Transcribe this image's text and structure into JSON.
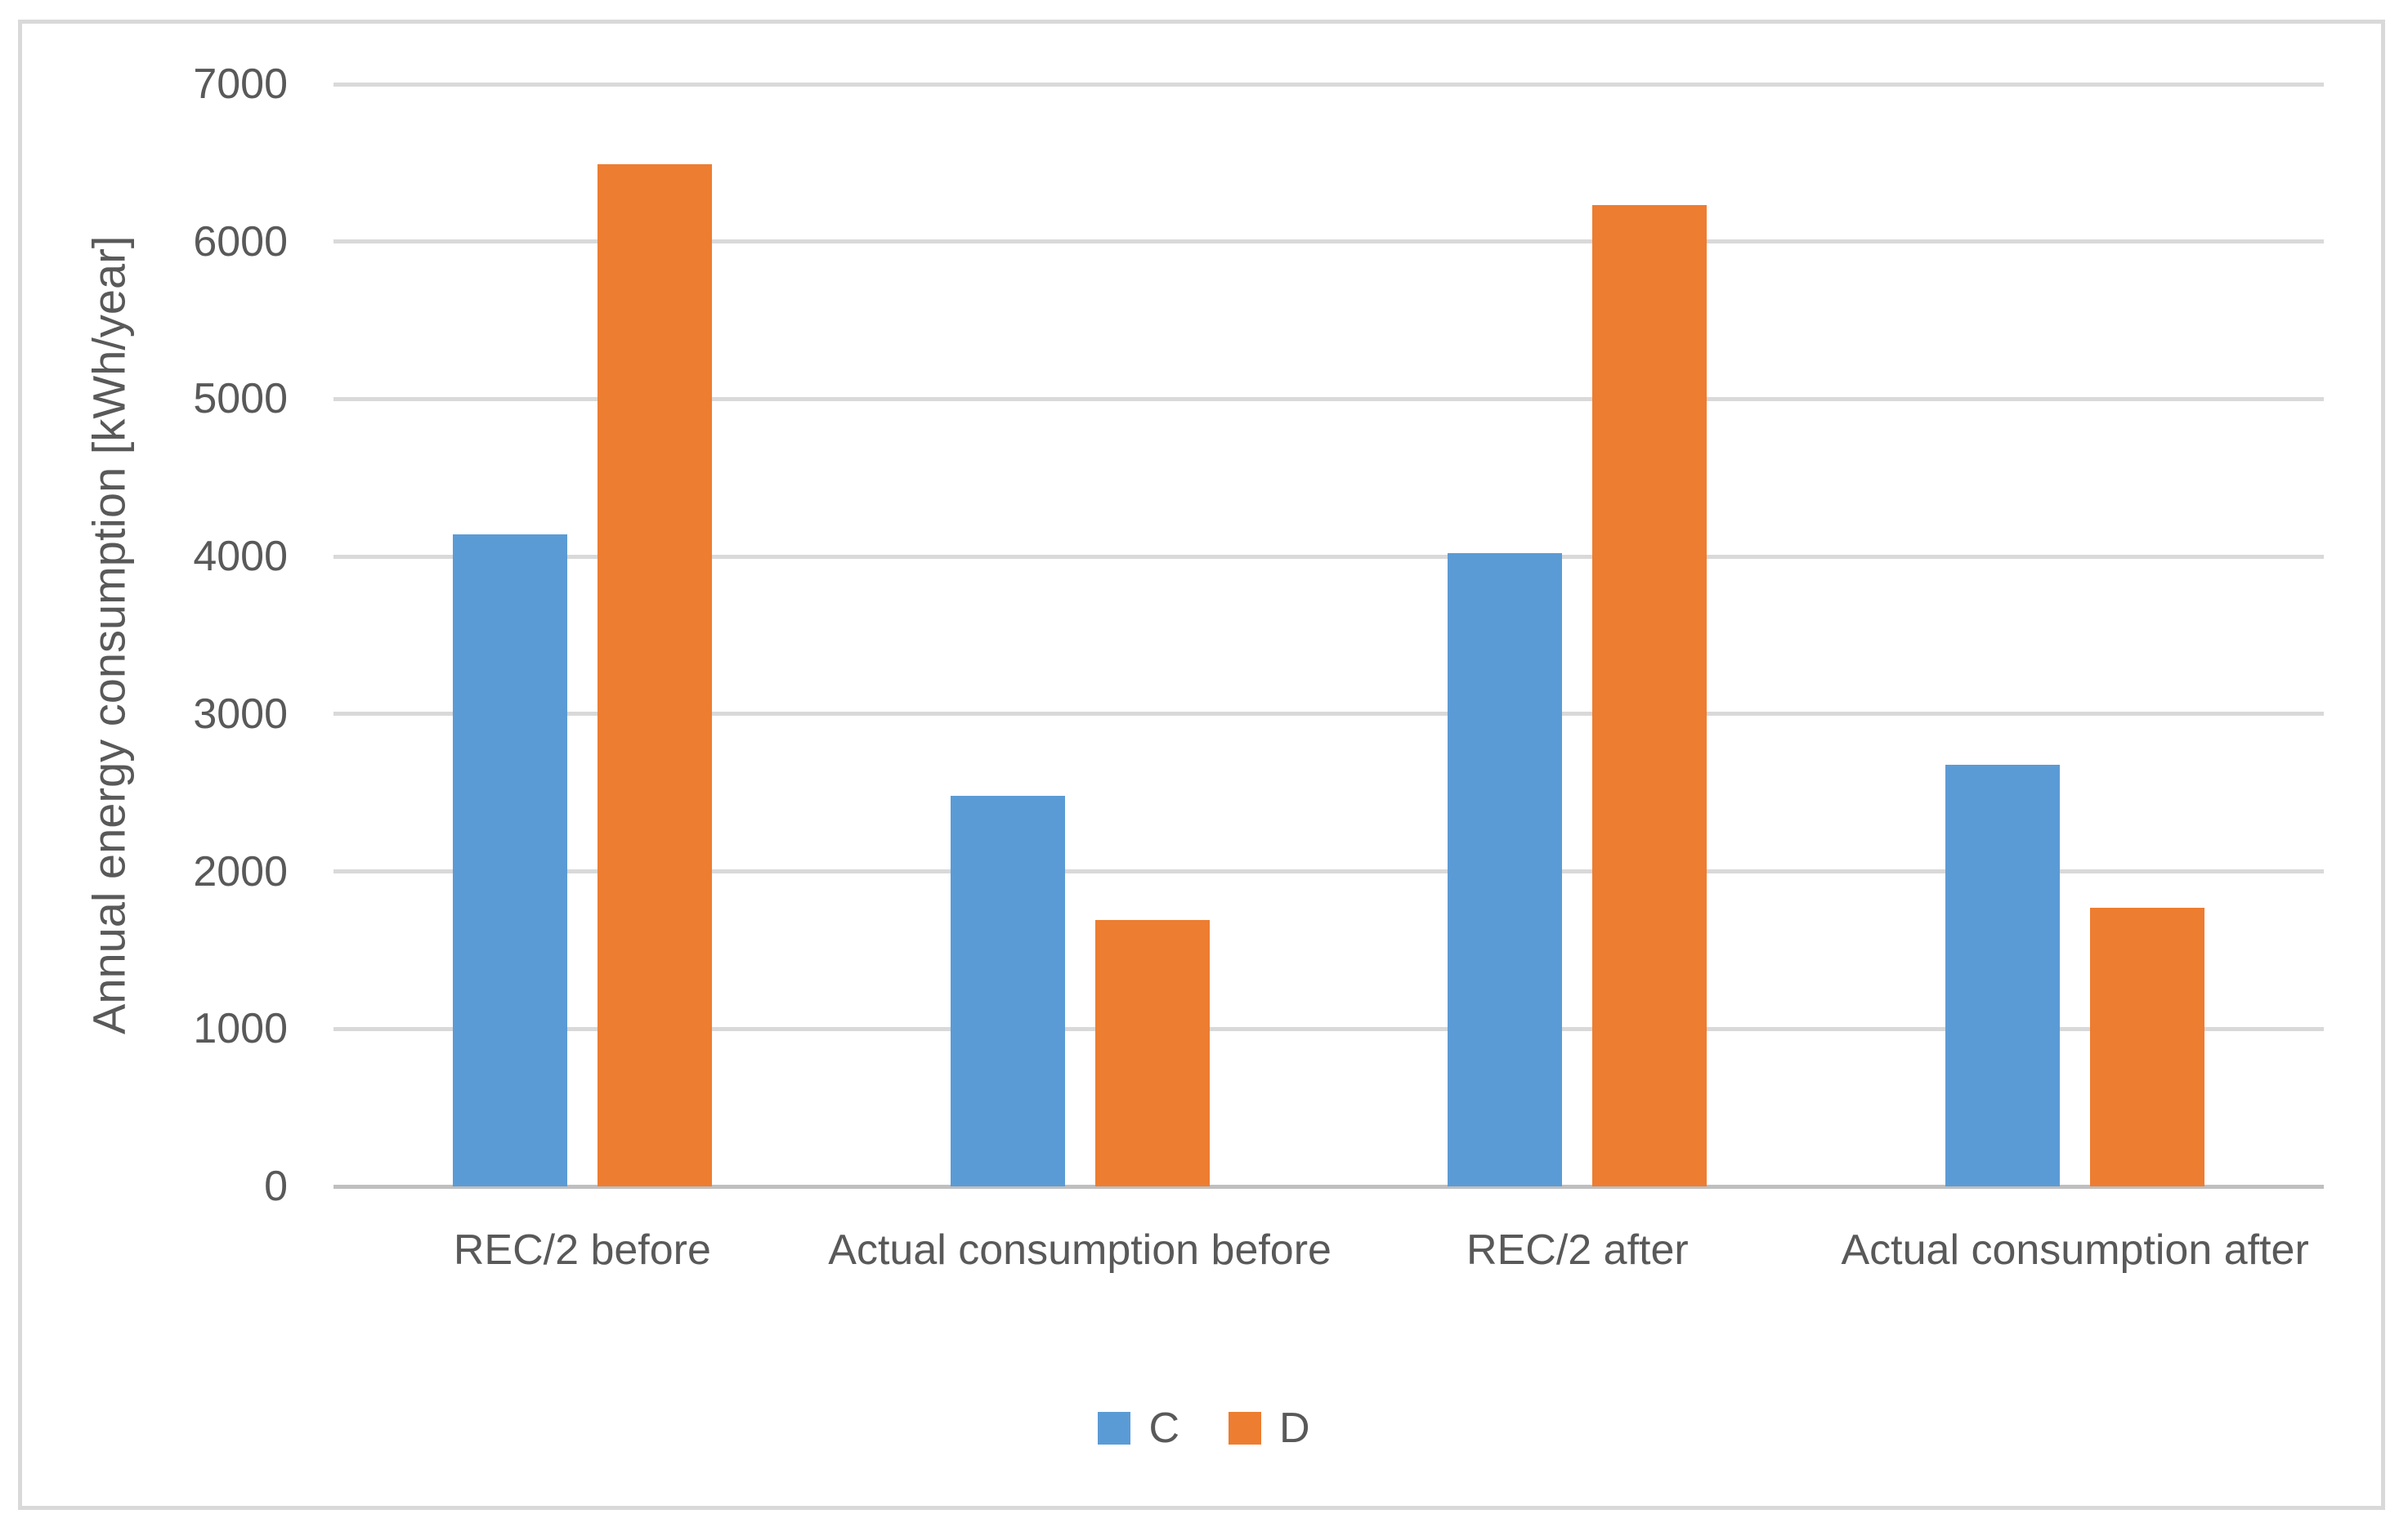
{
  "chart_data": {
    "type": "bar",
    "title": "",
    "categories": [
      "REC/2 before",
      "Actual consumption before",
      "REC/2 after",
      "Actual consumption after"
    ],
    "series": [
      {
        "name": "C",
        "color": "#5B9BD5",
        "values": [
          4140,
          2480,
          4020,
          2680
        ]
      },
      {
        "name": "D",
        "color": "#ED7D31",
        "values": [
          6490,
          1690,
          6230,
          1770
        ]
      }
    ],
    "xlabel": "",
    "ylabel": "Annual energy consumption [kWh/year]",
    "ylim": [
      0,
      7000
    ],
    "yticks": [
      0,
      1000,
      2000,
      3000,
      4000,
      5000,
      6000,
      7000
    ],
    "grid": true,
    "gridline_color": "#D9D9D9",
    "axis_line_color": "#BFBFBF",
    "text_color": "#595959",
    "legend_position": "bottom",
    "legend_entries": [
      "C",
      "D"
    ]
  }
}
